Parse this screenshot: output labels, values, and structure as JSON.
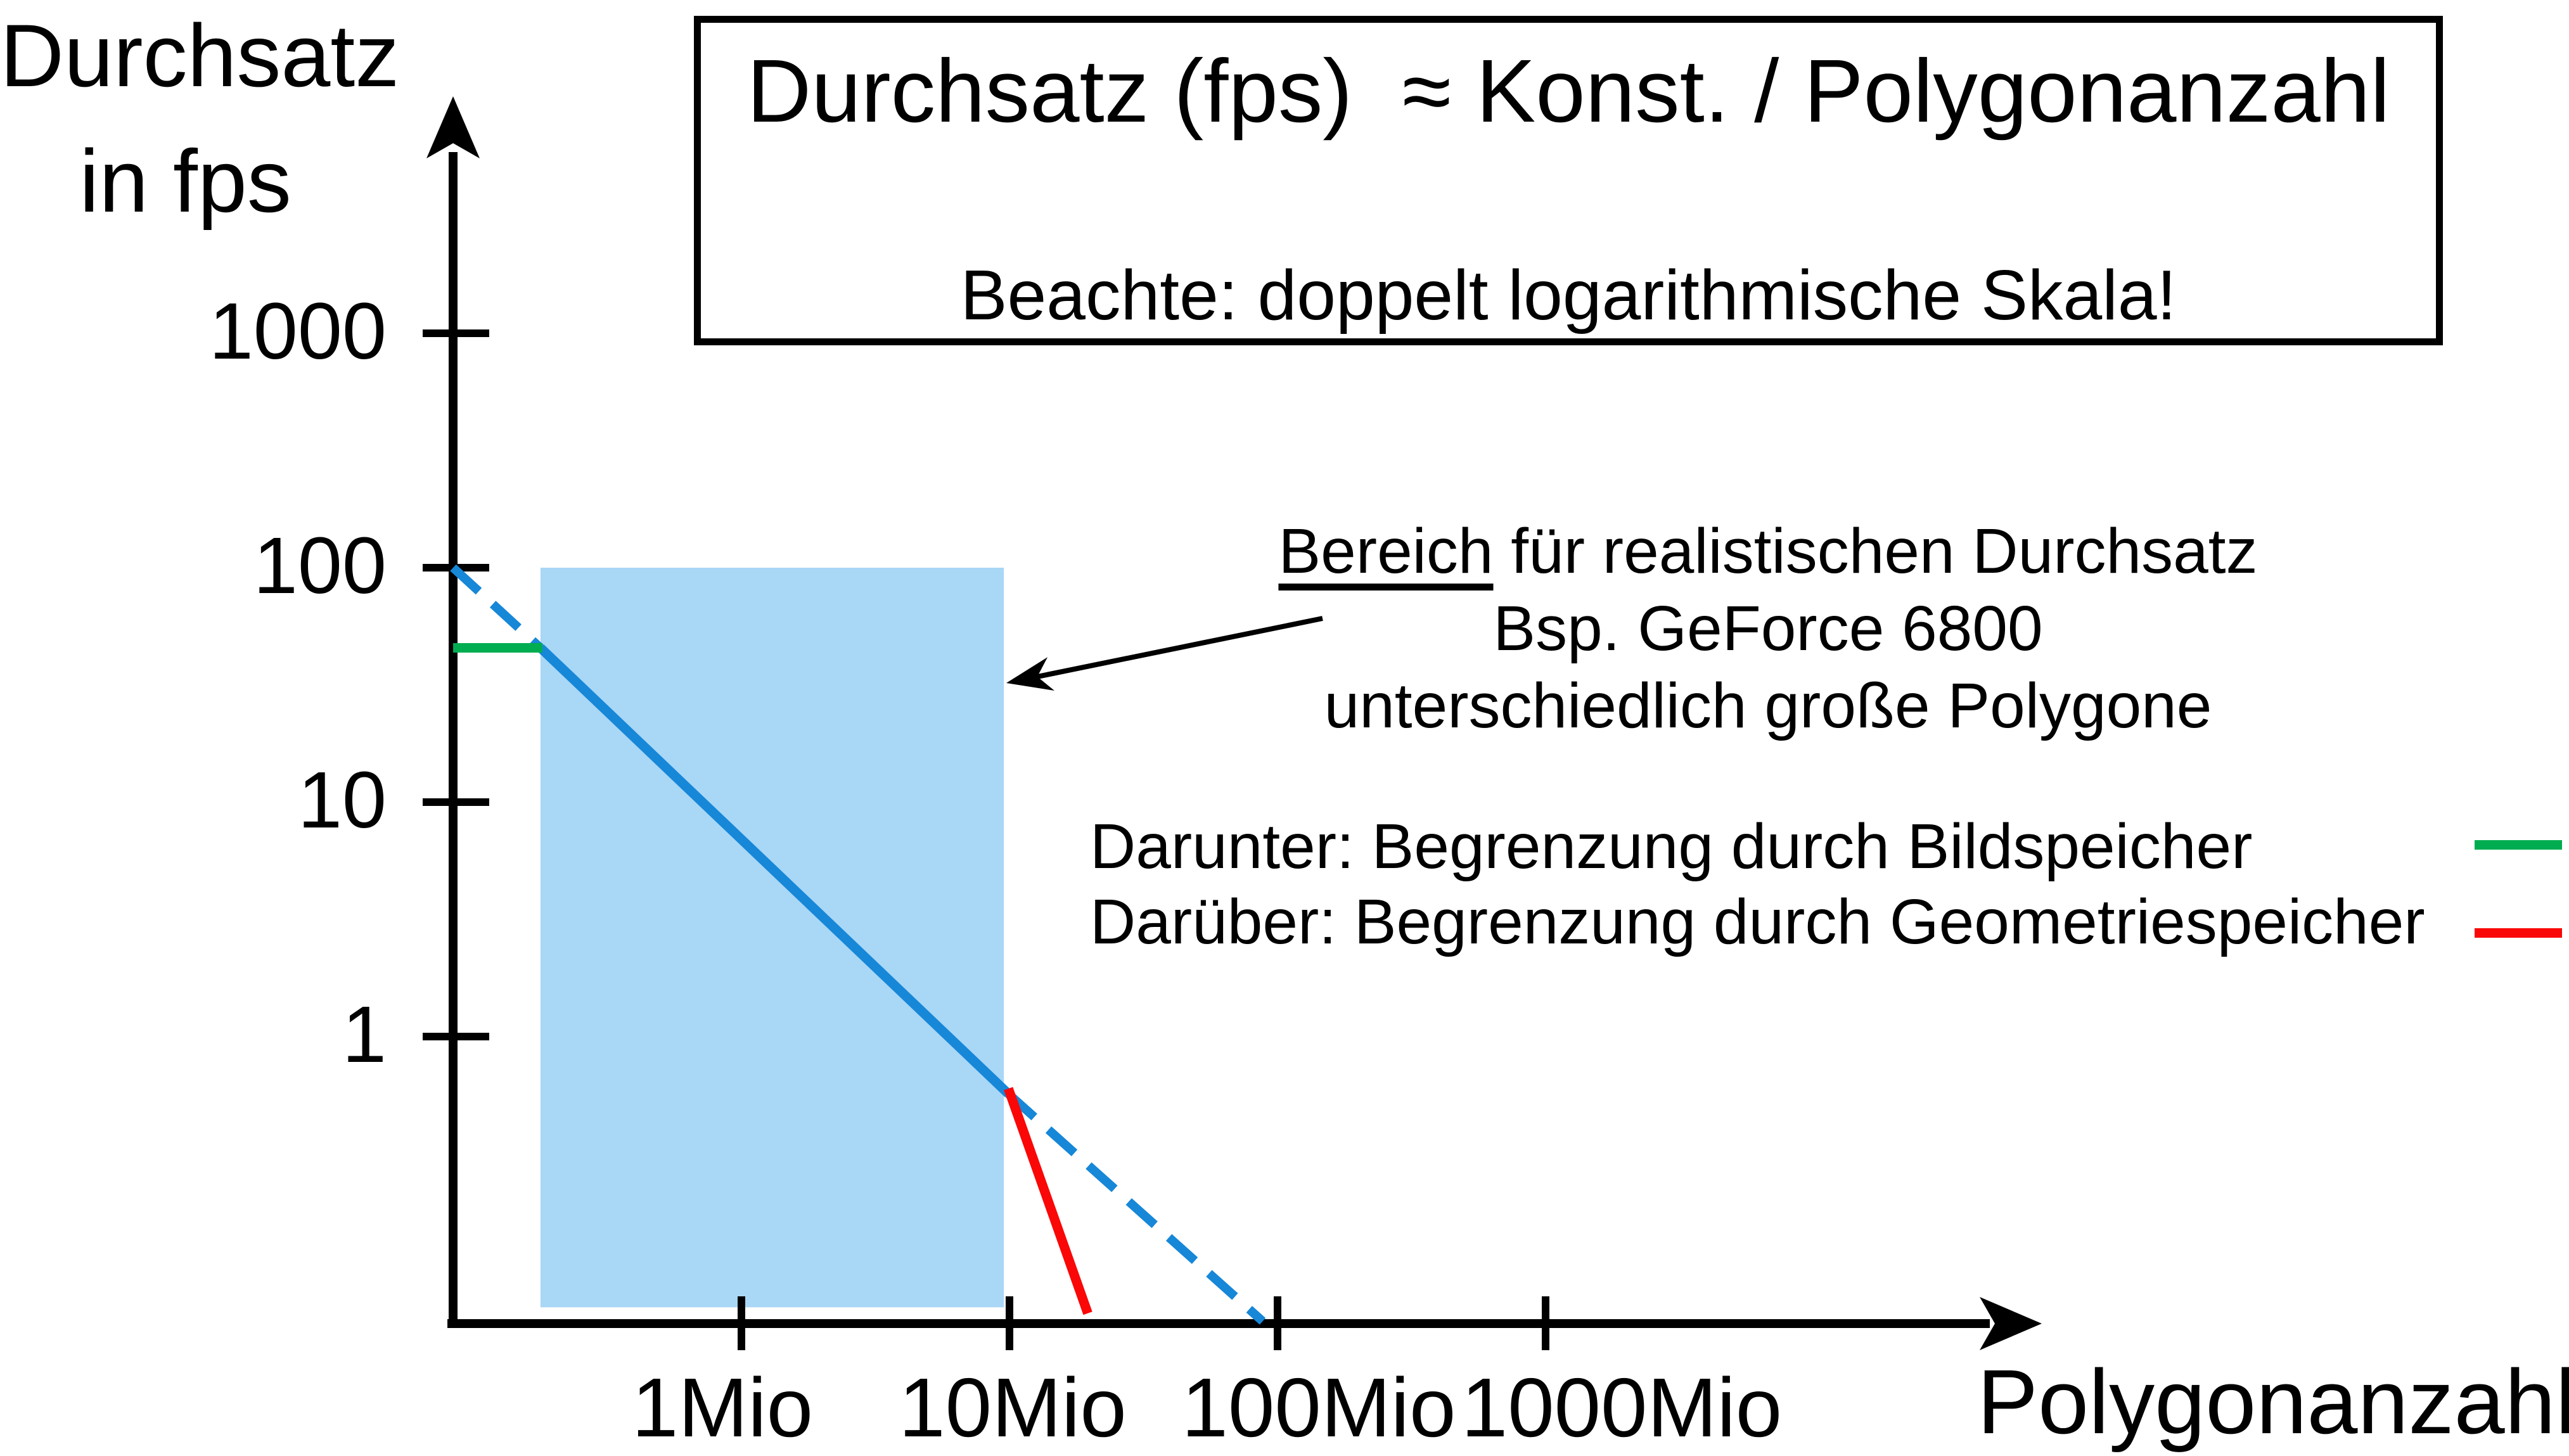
{
  "colors": {
    "background": "#FFFFFF",
    "axis": "#000000",
    "blue_line": "#1787D8",
    "blue_fill": "#A9D7F6",
    "green": "#00AD50",
    "red": "#FA0707"
  },
  "y_axis_title": {
    "line1": "Durchsatz",
    "line2": "in fps"
  },
  "x_axis_title": "Polygonanzahl",
  "title_box": {
    "line1": "Durchsatz (fps)  ≈ Konst. / Polygonanzahl",
    "line2": "Beachte: doppelt logarithmische Skala!"
  },
  "annotation": {
    "line1_underlined": "Bereich",
    "line1_rest": " für realistischen Durchsatz",
    "line2": "Bsp. GeForce 6800",
    "line3": "unterschiedlich große Polygone"
  },
  "legend": [
    {
      "label": "Darunter: Begrenzung durch Bildspeicher",
      "color": "#00AD50"
    },
    {
      "label": "Darüber: Begrenzung durch Geometriespeicher",
      "color": "#FA0707"
    }
  ],
  "chart_data": {
    "type": "line",
    "title": "Durchsatz (fps) ≈ Konst. / Polygonanzahl",
    "note": "Beachte: doppelt logarithmische Skala!",
    "x_axis": {
      "label": "Polygonanzahl",
      "scale": "log",
      "unit": "Mio Polygone",
      "ticks": [
        {
          "value": 1,
          "label": "1Mio"
        },
        {
          "value": 10,
          "label": "10Mio"
        },
        {
          "value": 100,
          "label": "100Mio"
        },
        {
          "value": 1000,
          "label": "1000Mio"
        }
      ]
    },
    "y_axis": {
      "label": "Durchsatz in fps",
      "scale": "log",
      "unit": "fps",
      "ticks": [
        {
          "value": 1000,
          "label": "1000"
        },
        {
          "value": 100,
          "label": "100"
        },
        {
          "value": 10,
          "label": "10"
        },
        {
          "value": 1,
          "label": "1"
        }
      ]
    },
    "series": [
      {
        "name": "ideal-throughput-dashed-upper",
        "style": "dashed",
        "color": "#1787D8",
        "points_mio_fps": [
          [
            0.084,
            100
          ],
          [
            0.178,
            45.5
          ]
        ]
      },
      {
        "name": "realistic-throughput-solid",
        "style": "solid",
        "color": "#1787D8",
        "points_mio_fps": [
          [
            0.178,
            45.5
          ],
          [
            9.9,
            0.57
          ]
        ]
      },
      {
        "name": "ideal-throughput-dashed-lower",
        "style": "dashed",
        "color": "#1787D8",
        "points_mio_fps": [
          [
            9.9,
            0.57
          ],
          [
            88,
            0.061
          ]
        ]
      },
      {
        "name": "bildspeicher-limit-green",
        "style": "solid",
        "color": "#00AD50",
        "points_mio_fps": [
          [
            0.084,
            45.5
          ],
          [
            0.181,
            45.5
          ]
        ]
      },
      {
        "name": "geometriespeicher-limit-red",
        "style": "solid",
        "color": "#FA0707",
        "points_mio_fps": [
          [
            9.9,
            0.6
          ],
          [
            19.6,
            0.066
          ]
        ]
      }
    ],
    "region": {
      "name": "realistic-throughput-region",
      "x_range_mio": [
        0.178,
        9.53
      ],
      "y_range_fps": [
        0.07,
        100
      ],
      "color": "#A9D7F6"
    }
  }
}
